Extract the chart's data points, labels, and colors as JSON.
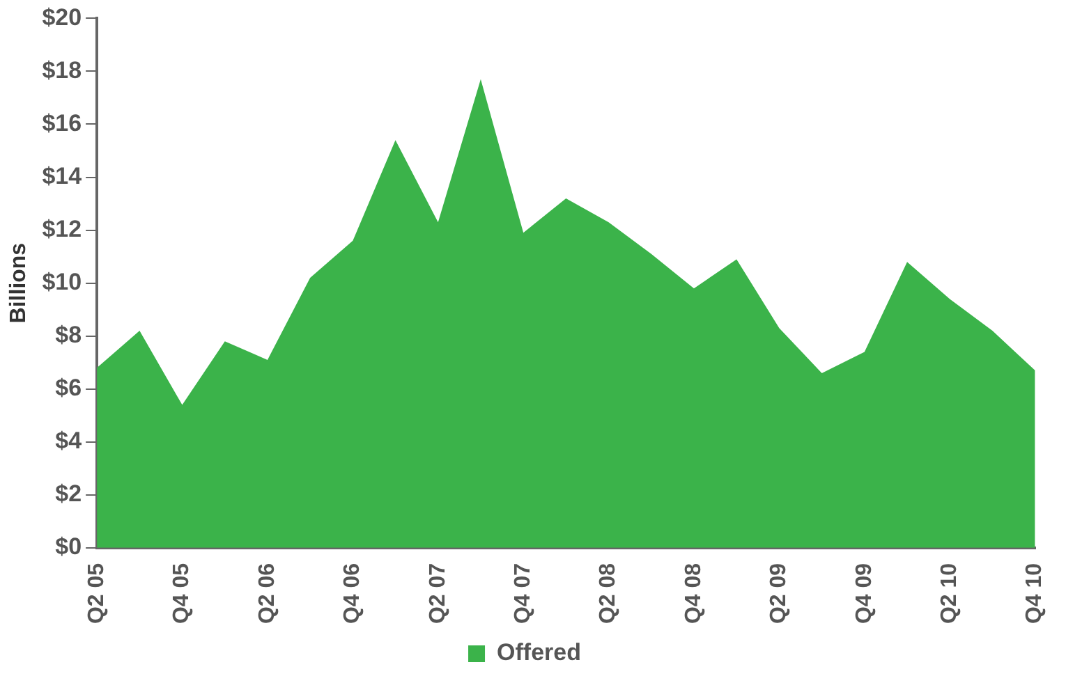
{
  "chart_data": {
    "type": "area",
    "ylabel": "Billions",
    "categories": [
      "Q2 05",
      null,
      "Q4 05",
      null,
      "Q2 06",
      null,
      "Q4 06",
      null,
      "Q2 07",
      null,
      "Q4 07",
      null,
      "Q2 08",
      null,
      "Q4 08",
      null,
      "Q2 09",
      null,
      "Q4 09",
      null,
      "Q2 10",
      null,
      "Q4 10"
    ],
    "series": [
      {
        "name": "Offered",
        "color": "#3bb34a",
        "values": [
          6.8,
          8.2,
          5.4,
          7.8,
          7.1,
          10.2,
          11.6,
          15.4,
          12.3,
          17.7,
          11.9,
          13.2,
          12.3,
          11.1,
          9.8,
          10.9,
          8.3,
          6.6,
          7.4,
          10.8,
          9.4,
          8.2,
          6.7
        ]
      }
    ],
    "ylim": [
      0,
      20
    ],
    "yticks": [
      {
        "value": 0,
        "label": "$0"
      },
      {
        "value": 2,
        "label": "$2"
      },
      {
        "value": 4,
        "label": "$4"
      },
      {
        "value": 6,
        "label": "$6"
      },
      {
        "value": 8,
        "label": "$8"
      },
      {
        "value": 10,
        "label": "$10"
      },
      {
        "value": 12,
        "label": "$12"
      },
      {
        "value": 14,
        "label": "$14"
      },
      {
        "value": 16,
        "label": "$16"
      },
      {
        "value": 18,
        "label": "$18"
      },
      {
        "value": 20,
        "label": "$20"
      }
    ],
    "grid": false,
    "legend": "bottom"
  }
}
